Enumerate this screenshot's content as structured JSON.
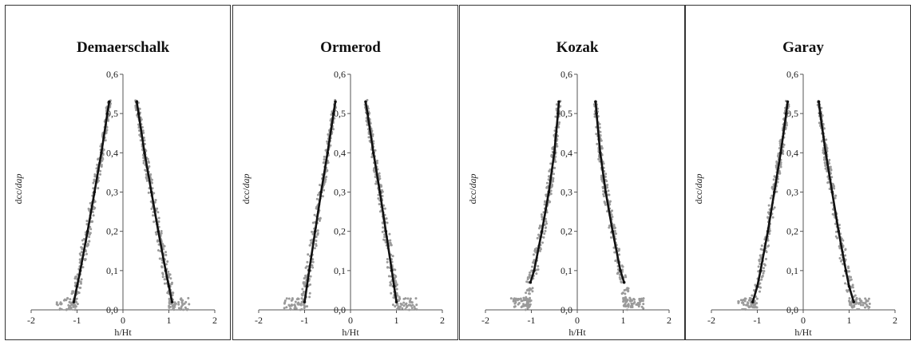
{
  "chart_data": [
    {
      "type": "scatter",
      "title": "Demaerschalk",
      "xlabel": "h/Ht",
      "ylabel_main": "dcc/",
      "ylabel_italic": "dap",
      "xlim": [
        -2,
        2
      ],
      "ylim": [
        0,
        0.6
      ],
      "xticks": [
        "-2",
        "-1",
        "0",
        "1",
        "2"
      ],
      "yticks": [
        "0,0",
        "0,1",
        "0,2",
        "0,3",
        "0,4",
        "0,5",
        "0,6"
      ],
      "observed_color": "#9a9a9a",
      "fitted_color": "#111111",
      "fitted_curve": {
        "y": [
          0.02,
          0.06,
          0.1,
          0.2,
          0.3,
          0.4,
          0.5,
          0.53
        ],
        "x": [
          1.07,
          1.0,
          0.93,
          0.77,
          0.62,
          0.47,
          0.34,
          0.3
        ]
      }
    },
    {
      "type": "scatter",
      "title": "Ormerod",
      "xlabel": "h/Ht",
      "ylabel_main": "dcc/",
      "ylabel_italic": "dap",
      "xlim": [
        -2,
        2
      ],
      "ylim": [
        0,
        0.6
      ],
      "xticks": [
        "-2",
        "-1",
        "0",
        "1",
        "2"
      ],
      "yticks": [
        "0,0",
        "0,1",
        "0,2",
        "0,3",
        "0,4",
        "0,5",
        "0,6"
      ],
      "observed_color": "#9a9a9a",
      "fitted_color": "#111111",
      "fitted_curve": {
        "y": [
          0.02,
          0.06,
          0.1,
          0.2,
          0.3,
          0.4,
          0.5,
          0.53
        ],
        "x": [
          1.0,
          0.95,
          0.9,
          0.77,
          0.64,
          0.5,
          0.37,
          0.33
        ]
      }
    },
    {
      "type": "scatter",
      "title": "Kozak",
      "xlabel": "h/Ht",
      "ylabel_main": "dcc/",
      "ylabel_italic": "dap",
      "xlim": [
        -2,
        2
      ],
      "ylim": [
        0,
        0.6
      ],
      "xticks": [
        "-2",
        "-1",
        "0",
        "1",
        "2"
      ],
      "yticks": [
        "0,0",
        "0,1",
        "0,2",
        "0,3",
        "0,4",
        "0,5",
        "0,6"
      ],
      "observed_color": "#9a9a9a",
      "fitted_color": "#111111",
      "fitted_curve": {
        "y": [
          0.07,
          0.1,
          0.2,
          0.3,
          0.4,
          0.5,
          0.53
        ],
        "x": [
          1.02,
          0.94,
          0.77,
          0.62,
          0.5,
          0.42,
          0.4
        ]
      }
    },
    {
      "type": "scatter",
      "title": "Garay",
      "xlabel": "h/Ht",
      "ylabel_main": "dcc/",
      "ylabel_italic": "dap",
      "xlim": [
        -2,
        2
      ],
      "ylim": [
        0,
        0.6
      ],
      "xticks": [
        "-2",
        "-1",
        "0",
        "1",
        "2"
      ],
      "yticks": [
        "0,0",
        "0,1",
        "0,2",
        "0,3",
        "0,4",
        "0,5",
        "0,6"
      ],
      "observed_color": "#9a9a9a",
      "fitted_color": "#111111",
      "fitted_curve": {
        "y": [
          0.02,
          0.06,
          0.1,
          0.2,
          0.3,
          0.4,
          0.5,
          0.53
        ],
        "x": [
          1.1,
          1.0,
          0.93,
          0.77,
          0.63,
          0.49,
          0.37,
          0.34
        ]
      }
    }
  ]
}
